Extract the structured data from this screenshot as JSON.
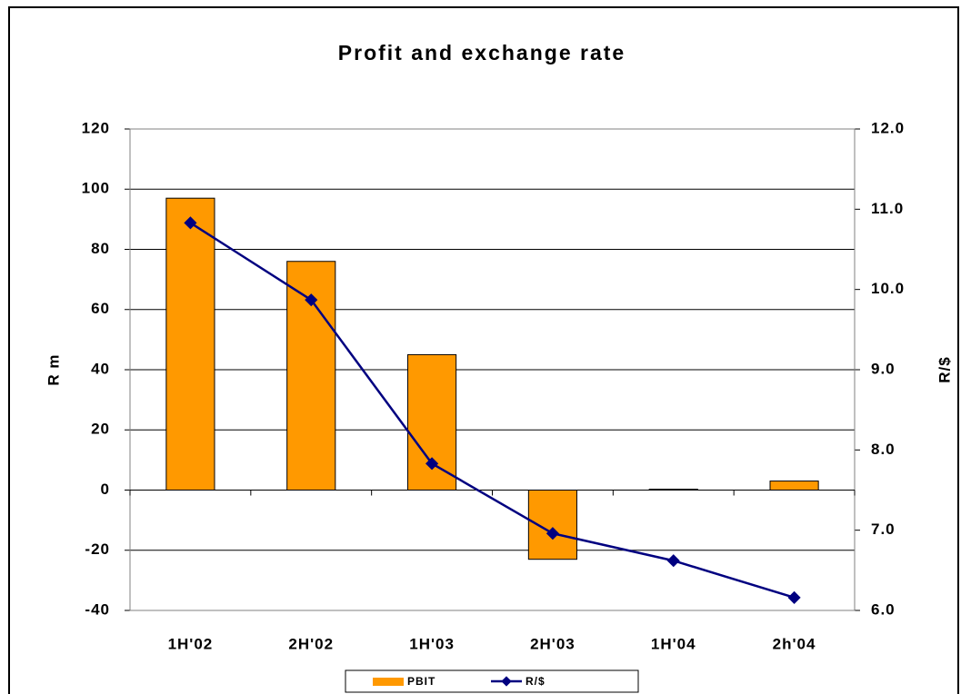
{
  "chart_data": {
    "type": "bar",
    "title": "Profit and exchange rate",
    "categories": [
      "1H'02",
      "2H'02",
      "1H'03",
      "2H'03",
      "1H'04",
      "2h'04"
    ],
    "series": [
      {
        "name": "PBIT",
        "type": "bar",
        "color": "#ff9900",
        "values": [
          97,
          76,
          45,
          -23,
          0.3,
          3
        ]
      },
      {
        "name": "R/$",
        "type": "line",
        "axis": "y2",
        "color": "#000080",
        "values": [
          10.83,
          9.87,
          7.83,
          6.96,
          6.62,
          6.16
        ]
      }
    ],
    "y_label": "R m",
    "y2_label": "R/$",
    "ylim": [
      -40,
      120
    ],
    "yticks": [
      -40,
      -20,
      0,
      20,
      40,
      60,
      80,
      100,
      120
    ],
    "y2lim": [
      6,
      12
    ],
    "y2ticks": [
      {
        "value": 6,
        "label": "6.0"
      },
      {
        "value": 7,
        "label": "7.0"
      },
      {
        "value": 8,
        "label": "8.0"
      },
      {
        "value": 9,
        "label": "9.0"
      },
      {
        "value": 10,
        "label": "10.0"
      },
      {
        "value": 11,
        "label": "11.0"
      },
      {
        "value": 12,
        "label": "12.0"
      }
    ],
    "grid": true,
    "legend": "bottom"
  }
}
